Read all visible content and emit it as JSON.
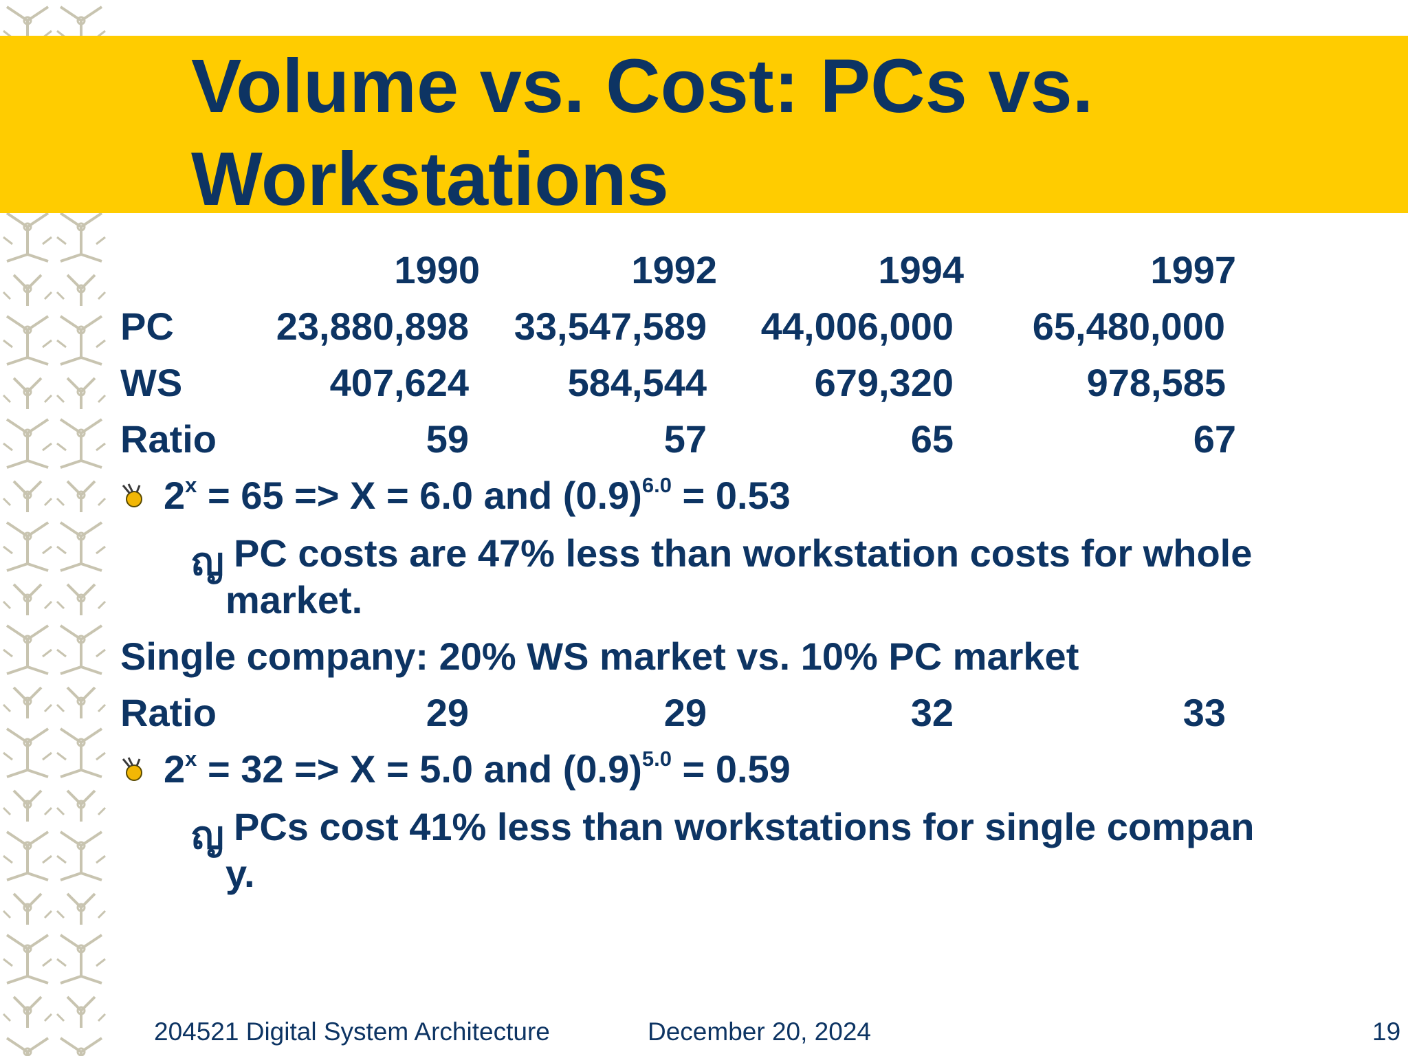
{
  "slide": {
    "title": "Volume vs. Cost: PCs vs. Workstations",
    "years": [
      "1990",
      "1992",
      "1994",
      "1997"
    ],
    "rows": [
      {
        "label": "PC",
        "values": [
          "23,880,898",
          "33,547,589",
          "44,006,000",
          "65,480,000"
        ]
      },
      {
        "label": "WS",
        "values": [
          "407,624",
          "584,544",
          "679,320",
          "978,585"
        ]
      },
      {
        "label": "Ratio",
        "values": [
          "59",
          "57",
          "65",
          "67"
        ]
      }
    ],
    "bullet1": {
      "a": "2",
      "x": "x",
      "b": " = 65 => X = 6.0 and (0.9)",
      "exp": "6.0",
      "c": " = 0.53"
    },
    "sub1": {
      "marker": "ญ",
      "line1": "PC costs are 47% less than workstation costs for whole",
      "line2": "market."
    },
    "single_company": "Single company:  20% WS market vs. 10% PC market",
    "ratio2": {
      "label": "Ratio",
      "values": [
        "29",
        "29",
        "32",
        "33"
      ]
    },
    "bullet2": {
      "a": "2",
      "x": "x",
      "b": " = 32 => X = 5.0 and (0.9)",
      "exp": "5.0",
      "c": " = 0.59"
    },
    "sub2": {
      "marker": "ญ",
      "line1": "PCs cost 41% less than workstations for single compan",
      "line2": "y."
    }
  },
  "footer": {
    "course": "204521 Digital System Architecture",
    "date": "December 20, 2024",
    "page": "19"
  },
  "colors": {
    "title_bar": "#ffcc00",
    "text": "#0d3463",
    "pattern": "#c8c4b0"
  }
}
